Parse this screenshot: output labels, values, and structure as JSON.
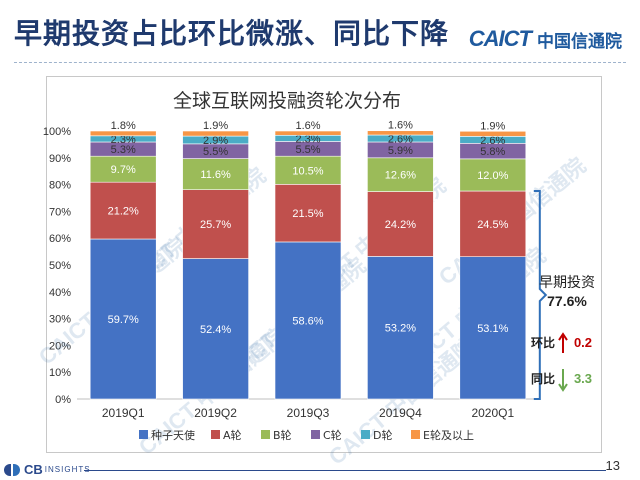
{
  "slide": {
    "title": "早期投资占比环比微涨、同比下降",
    "brand_caict": "CAICT",
    "brand_cn": "中国信通院",
    "watermark": "CAICT 中国信通院",
    "footer_brand": "CB",
    "footer_brand_sub": "INSIGHTS",
    "page_number": "13"
  },
  "annotation": {
    "label": "早期投资",
    "value": "77.6%",
    "qoq_label": "环比",
    "qoq_value": "0.2",
    "qoq_direction": "up",
    "qoq_color": "#c00000",
    "yoy_label": "同比",
    "yoy_value": "3.3",
    "yoy_direction": "down",
    "yoy_color": "#6aa84f"
  },
  "chart_data": {
    "type": "bar",
    "stacked": true,
    "title": "全球互联网投融资轮次分布",
    "categories": [
      "2019Q1",
      "2019Q2",
      "2019Q3",
      "2019Q4",
      "2020Q1"
    ],
    "ylim": [
      0,
      100
    ],
    "yticks": [
      "0%",
      "10%",
      "20%",
      "30%",
      "40%",
      "50%",
      "60%",
      "70%",
      "80%",
      "90%",
      "100%"
    ],
    "legend_position": "bottom",
    "series": [
      {
        "name": "种子天使",
        "color": "#4472c4",
        "values": [
          59.7,
          52.4,
          58.6,
          53.2,
          53.1
        ],
        "labels": [
          "59.7%",
          "52.4%",
          "58.6%",
          "53.2%",
          "53.1%"
        ]
      },
      {
        "name": "A轮",
        "color": "#c0504d",
        "values": [
          21.2,
          25.7,
          21.5,
          24.2,
          24.5
        ],
        "labels": [
          "21.2%",
          "25.7%",
          "21.5%",
          "24.2%",
          "24.5%"
        ]
      },
      {
        "name": "B轮",
        "color": "#9bbb59",
        "values": [
          9.7,
          11.6,
          10.5,
          12.6,
          12.0
        ],
        "labels": [
          "9.7%",
          "11.6%",
          "10.5%",
          "12.6%",
          "12.0%"
        ]
      },
      {
        "name": "C轮",
        "color": "#8064a2",
        "values": [
          5.3,
          5.5,
          5.5,
          5.9,
          5.8
        ],
        "labels": [
          "5.3%",
          "5.5%",
          "5.5%",
          "5.9%",
          "5.8%"
        ]
      },
      {
        "name": "D轮",
        "color": "#4bacc6",
        "values": [
          2.3,
          2.9,
          2.3,
          2.6,
          2.6
        ],
        "labels": [
          "2.3%",
          "2.9%",
          "2.3%",
          "2.6%",
          "2.6%"
        ]
      },
      {
        "name": "E轮及以上",
        "color": "#f79646",
        "values": [
          1.8,
          1.9,
          1.6,
          1.6,
          1.9
        ],
        "labels": [
          "1.8%",
          "1.9%",
          "1.6%",
          "1.6%",
          "1.9%"
        ]
      }
    ]
  }
}
